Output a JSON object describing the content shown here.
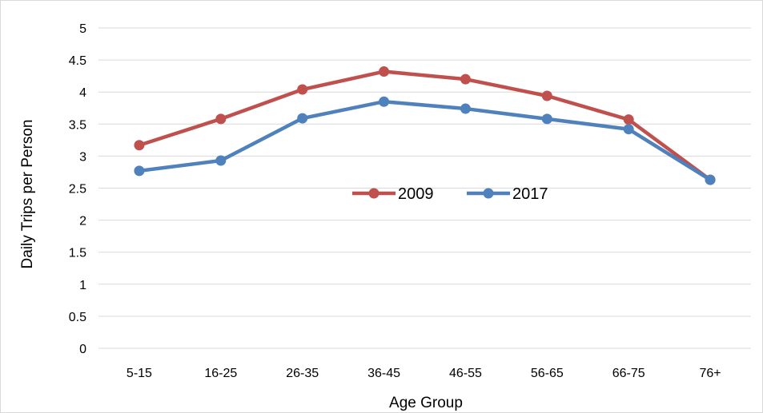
{
  "chart_data": {
    "type": "line",
    "title": "",
    "xlabel": "Age Group",
    "ylabel": "Daily Trips per Person",
    "categories": [
      "5-15",
      "16-25",
      "26-35",
      "36-45",
      "46-55",
      "56-65",
      "66-75",
      "76+"
    ],
    "ylim": [
      0,
      5
    ],
    "yticks": [
      0,
      0.5,
      1,
      1.5,
      2,
      2.5,
      3,
      3.5,
      4,
      4.5,
      5
    ],
    "ytick_labels": [
      "0",
      "0.5",
      "1",
      "1.5",
      "2",
      "2.5",
      "3",
      "3.5",
      "4",
      "4.5",
      "5"
    ],
    "grid": "horizontal",
    "legend_position": "center",
    "series": [
      {
        "name": "2009",
        "color": "#C0504D",
        "values": [
          3.17,
          3.58,
          4.04,
          4.32,
          4.2,
          3.94,
          3.57,
          2.63
        ]
      },
      {
        "name": "2017",
        "color": "#4F81BD",
        "values": [
          2.77,
          2.93,
          3.59,
          3.85,
          3.74,
          3.58,
          3.42,
          2.63
        ]
      }
    ]
  }
}
